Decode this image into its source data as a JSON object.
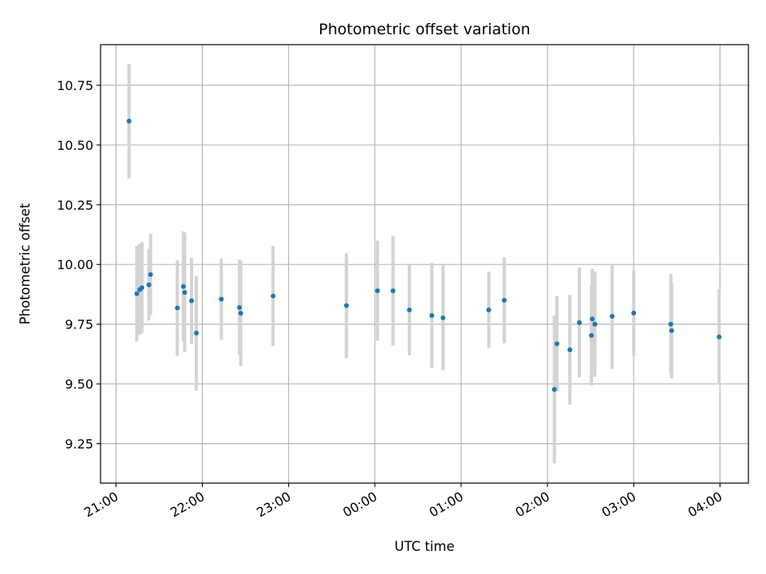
{
  "chart_data": {
    "type": "scatter",
    "title": "Photometric offset variation",
    "xlabel": "UTC time",
    "ylabel": "Photometric offset",
    "x_unit": "hours after 21:00 UTC",
    "xlim": [
      -0.18,
      7.33
    ],
    "ylim": [
      9.085,
      10.92
    ],
    "x_ticks": [
      {
        "value": 0,
        "label": "21:00"
      },
      {
        "value": 1,
        "label": "22:00"
      },
      {
        "value": 2,
        "label": "23:00"
      },
      {
        "value": 3,
        "label": "00:00"
      },
      {
        "value": 4,
        "label": "01:00"
      },
      {
        "value": 5,
        "label": "02:00"
      },
      {
        "value": 6,
        "label": "03:00"
      },
      {
        "value": 7,
        "label": "04:00"
      }
    ],
    "y_ticks": [
      {
        "value": 9.25,
        "label": "9.25"
      },
      {
        "value": 9.5,
        "label": "9.50"
      },
      {
        "value": 9.75,
        "label": "9.75"
      },
      {
        "value": 10.0,
        "label": "10.00"
      },
      {
        "value": 10.25,
        "label": "10.25"
      },
      {
        "value": 10.5,
        "label": "10.50"
      },
      {
        "value": 10.75,
        "label": "10.75"
      }
    ],
    "grid": true,
    "colors": {
      "point": "#1f77b4",
      "errorbar": "#d3d3d3",
      "grid": "#b0b0b0"
    },
    "points": [
      {
        "x": 0.15,
        "y": 10.6,
        "err": 0.24
      },
      {
        "x": 0.24,
        "y": 9.878,
        "err": 0.2
      },
      {
        "x": 0.275,
        "y": 9.895,
        "err": 0.19
      },
      {
        "x": 0.3,
        "y": 9.903,
        "err": 0.19
      },
      {
        "x": 0.38,
        "y": 9.915,
        "err": 0.15
      },
      {
        "x": 0.4,
        "y": 9.958,
        "err": 0.17
      },
      {
        "x": 0.71,
        "y": 9.818,
        "err": 0.2
      },
      {
        "x": 0.78,
        "y": 9.908,
        "err": 0.23
      },
      {
        "x": 0.795,
        "y": 9.883,
        "err": 0.25
      },
      {
        "x": 0.875,
        "y": 9.848,
        "err": 0.18
      },
      {
        "x": 0.93,
        "y": 9.713,
        "err": 0.24
      },
      {
        "x": 1.22,
        "y": 9.855,
        "err": 0.17
      },
      {
        "x": 1.43,
        "y": 9.82,
        "err": 0.2
      },
      {
        "x": 1.445,
        "y": 9.796,
        "err": 0.22
      },
      {
        "x": 1.82,
        "y": 9.868,
        "err": 0.21
      },
      {
        "x": 2.67,
        "y": 9.828,
        "err": 0.22
      },
      {
        "x": 3.03,
        "y": 9.89,
        "err": 0.21
      },
      {
        "x": 3.21,
        "y": 9.89,
        "err": 0.23
      },
      {
        "x": 3.4,
        "y": 9.81,
        "err": 0.19
      },
      {
        "x": 3.66,
        "y": 9.787,
        "err": 0.22
      },
      {
        "x": 3.79,
        "y": 9.777,
        "err": 0.22
      },
      {
        "x": 4.32,
        "y": 9.81,
        "err": 0.16
      },
      {
        "x": 4.5,
        "y": 9.85,
        "err": 0.18
      },
      {
        "x": 5.08,
        "y": 9.477,
        "err": 0.31
      },
      {
        "x": 5.11,
        "y": 9.668,
        "err": 0.2
      },
      {
        "x": 5.26,
        "y": 9.643,
        "err": 0.23
      },
      {
        "x": 5.37,
        "y": 9.757,
        "err": 0.23
      },
      {
        "x": 5.51,
        "y": 9.703,
        "err": 0.21
      },
      {
        "x": 5.52,
        "y": 9.772,
        "err": 0.21
      },
      {
        "x": 5.55,
        "y": 9.75,
        "err": 0.22
      },
      {
        "x": 5.75,
        "y": 9.783,
        "err": 0.22
      },
      {
        "x": 6.0,
        "y": 9.797,
        "err": 0.18
      },
      {
        "x": 6.43,
        "y": 9.75,
        "err": 0.21
      },
      {
        "x": 6.44,
        "y": 9.723,
        "err": 0.2
      },
      {
        "x": 6.99,
        "y": 9.697,
        "err": 0.2
      }
    ]
  }
}
